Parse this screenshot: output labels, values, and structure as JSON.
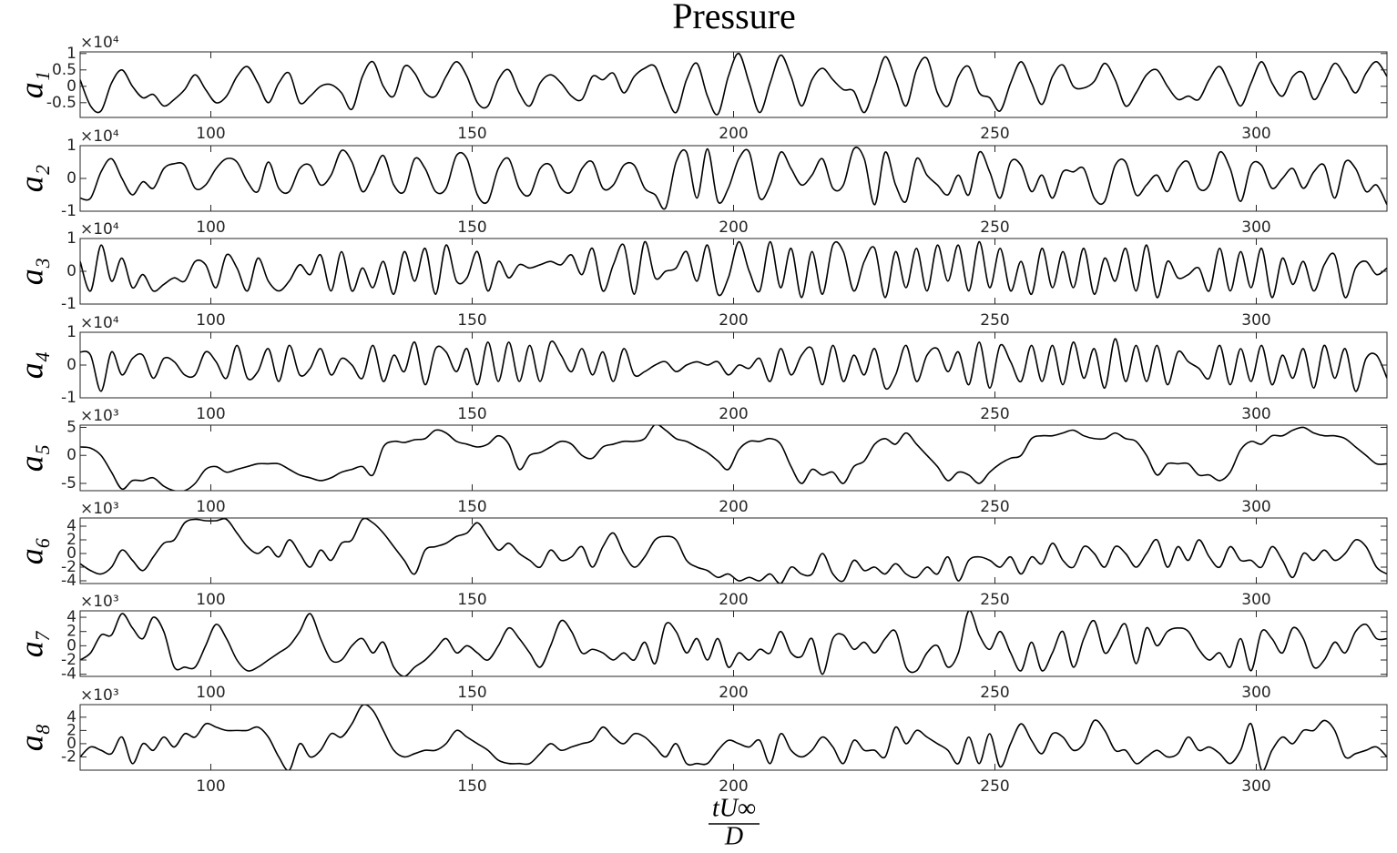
{
  "chart_data": {
    "type": "line",
    "title": "Pressure",
    "xlabel_numerator": "tU∞",
    "xlabel_denominator": "D",
    "xlim": [
      75,
      325
    ],
    "xticks": [
      100,
      150,
      200,
      250,
      300
    ],
    "color": "#000000",
    "x": [
      75,
      77,
      79,
      81,
      83,
      85,
      87,
      89,
      91,
      93,
      95,
      97,
      99,
      101,
      103,
      105,
      107,
      109,
      111,
      113,
      115,
      117,
      119,
      121,
      123,
      125,
      127,
      129,
      131,
      133,
      135,
      137,
      139,
      141,
      143,
      145,
      147,
      149,
      151,
      153,
      155,
      157,
      159,
      161,
      163,
      165,
      167,
      169,
      171,
      173,
      175,
      177,
      179,
      181,
      183,
      185,
      187,
      189,
      191,
      193,
      195,
      197,
      199,
      201,
      203,
      205,
      207,
      209,
      211,
      213,
      215,
      217,
      219,
      221,
      223,
      225,
      227,
      229,
      231,
      233,
      235,
      237,
      239,
      241,
      243,
      245,
      247,
      249,
      251,
      253,
      255,
      257,
      259,
      261,
      263,
      265,
      267,
      269,
      271,
      273,
      275,
      277,
      279,
      281,
      283,
      285,
      287,
      289,
      291,
      293,
      295,
      297,
      299,
      301,
      303,
      305,
      307,
      309,
      311,
      313,
      315,
      317,
      319,
      321,
      323,
      325
    ],
    "panels": [
      {
        "ylabel": "a₁",
        "y_multiplier": "×10⁴",
        "ylim": [
          -0.95,
          1.05
        ],
        "yticks": [
          -0.5,
          0,
          0.5,
          1
        ],
        "values": [
          0.2,
          -0.6,
          -0.75,
          0.1,
          0.5,
          0,
          -0.35,
          -0.25,
          -0.6,
          -0.4,
          -0.1,
          0.35,
          -0.1,
          -0.5,
          -0.3,
          0.3,
          0.6,
          0.1,
          -0.5,
          0.1,
          0.4,
          -0.5,
          -0.3,
          0,
          0.05,
          -0.2,
          -0.7,
          0.3,
          0.75,
          0,
          -0.3,
          0.6,
          0.4,
          -0.2,
          -0.3,
          0.3,
          0.75,
          0.3,
          -0.5,
          -0.6,
          0.2,
          0.5,
          -0.2,
          -0.6,
          0.1,
          0.35,
          0.1,
          -0.3,
          -0.4,
          0.3,
          0.2,
          0.4,
          -0.2,
          0.3,
          0.55,
          0.6,
          -0.2,
          -0.8,
          0.2,
          0.7,
          -0.3,
          -0.85,
          0.3,
          1.0,
          0.1,
          -0.8,
          0.1,
          0.95,
          0.3,
          -0.6,
          0.2,
          0.55,
          0.2,
          -0.1,
          -0.15,
          -0.8,
          0,
          0.9,
          0.2,
          -0.6,
          0.5,
          0.85,
          -0.2,
          -0.6,
          0.3,
          0.6,
          -0.2,
          -0.35,
          -0.75,
          0.1,
          0.75,
          0.1,
          -0.55,
          0.3,
          0.65,
          0,
          -0.05,
          0.15,
          0.7,
          0.2,
          -0.6,
          -0.2,
          0.35,
          0.5,
          0,
          -0.4,
          -0.3,
          -0.4,
          0.2,
          0.6,
          0,
          -0.6,
          0.1,
          0.75,
          0.1,
          -0.3,
          0.3,
          0.4,
          -0.4,
          0.1,
          0.7,
          0.3,
          -0.2,
          0.4,
          0.75,
          0.3
        ]
      },
      {
        "ylabel": "a₂",
        "y_multiplier": "×10⁴",
        "ylim": [
          -1,
          1
        ],
        "yticks": [
          -1,
          0,
          1
        ],
        "values": [
          -0.6,
          -0.6,
          0.2,
          0.6,
          0,
          -0.5,
          -0.1,
          -0.3,
          0.3,
          0.45,
          0.4,
          -0.3,
          -0.2,
          0.3,
          0.6,
          0.5,
          -0.1,
          -0.4,
          0.5,
          -0.3,
          -0.4,
          0.3,
          0.4,
          -0.2,
          0.1,
          0.85,
          0.5,
          -0.4,
          0.1,
          0.7,
          -0.2,
          -0.4,
          0.6,
          0.3,
          -0.4,
          -0.3,
          0.7,
          0.6,
          -0.5,
          -0.7,
          0.3,
          0.6,
          -0.3,
          -0.5,
          0.3,
          0.4,
          -0.3,
          -0.4,
          0.3,
          0.5,
          -0.3,
          -0.2,
          0.4,
          0.4,
          -0.3,
          -0.5,
          -0.9,
          0.5,
          0.8,
          -0.6,
          0.9,
          -0.7,
          -0.3,
          0.6,
          0.8,
          -0.6,
          -0.2,
          0.8,
          0.3,
          -0.2,
          0.1,
          0.6,
          -0.3,
          -0.2,
          0.9,
          0.6,
          -0.8,
          0.8,
          -0.2,
          -0.7,
          0.6,
          0.1,
          -0.2,
          -0.5,
          0.1,
          -0.5,
          0.8,
          0.2,
          -0.6,
          0.5,
          0.4,
          -0.4,
          0.1,
          -0.6,
          0.2,
          0.2,
          0.3,
          -0.6,
          -0.7,
          0.4,
          0.5,
          -0.5,
          -0.2,
          0.1,
          -0.4,
          0.3,
          0.5,
          -0.3,
          -0.2,
          0.8,
          0.3,
          -0.7,
          0.4,
          0.4,
          -0.3,
          0,
          0.3,
          -0.3,
          0.2,
          0.4,
          -0.6,
          0.5,
          0.3,
          -0.4,
          -0.2,
          -0.8
        ]
      },
      {
        "ylabel": "a₃",
        "y_multiplier": "×10⁴",
        "ylim": [
          -1,
          1
        ],
        "yticks": [
          -1,
          0,
          1
        ],
        "values": [
          0.3,
          -0.6,
          0.8,
          -0.3,
          0.4,
          -0.5,
          -0.1,
          -0.6,
          -0.4,
          -0.2,
          -0.3,
          0.3,
          0.2,
          -0.5,
          0.5,
          0.1,
          -0.6,
          0.4,
          -0.3,
          -0.6,
          -0.3,
          0.2,
          -0.1,
          0.5,
          -0.6,
          0.6,
          -0.6,
          0.1,
          -0.5,
          0.3,
          -0.7,
          0.6,
          -0.3,
          0.7,
          -0.7,
          0.8,
          -0.3,
          -0.2,
          0.6,
          -0.6,
          0.3,
          -0.2,
          0.2,
          0.1,
          0.2,
          0.3,
          0.2,
          0.5,
          -0.1,
          0.7,
          -0.6,
          0.2,
          0.8,
          -0.7,
          0.9,
          -0.2,
          0,
          0.1,
          0.6,
          -0.3,
          0.8,
          -0.7,
          -0.2,
          0.9,
          0,
          -0.6,
          0.9,
          -0.5,
          0.7,
          -0.8,
          0.6,
          -0.7,
          0.8,
          0.6,
          -0.6,
          0.3,
          0.7,
          -0.8,
          0.6,
          -0.5,
          0.7,
          -0.6,
          0.8,
          -0.3,
          0.8,
          -0.6,
          0.9,
          -0.5,
          0.7,
          -0.6,
          0.3,
          -0.7,
          0.7,
          -0.5,
          0.6,
          -0.5,
          0.7,
          -0.7,
          0.4,
          -0.3,
          0.7,
          -0.6,
          0.8,
          -0.8,
          0.3,
          -0.2,
          -0.1,
          0.1,
          -0.6,
          0.7,
          -0.6,
          0.6,
          -0.5,
          0.7,
          -0.8,
          0.4,
          -0.4,
          0.3,
          -0.6,
          0.2,
          0.5,
          -0.8,
          0.1,
          0.3,
          -0.1,
          0.1
        ]
      },
      {
        "ylabel": "a₄",
        "y_multiplier": "×10⁴",
        "ylim": [
          -1,
          1
        ],
        "yticks": [
          -1,
          0,
          1
        ],
        "values": [
          0.4,
          0.3,
          -0.8,
          0.4,
          -0.3,
          0.2,
          0.3,
          -0.4,
          0.2,
          0.1,
          -0.3,
          -0.3,
          0.4,
          0.1,
          -0.4,
          0.6,
          -0.4,
          -0.2,
          0.5,
          -0.5,
          0.6,
          -0.3,
          -0.1,
          0.5,
          -0.3,
          0.2,
          0,
          -0.4,
          0.6,
          -0.5,
          0.3,
          -0.2,
          0.7,
          -0.6,
          0.5,
          0.4,
          -0.2,
          0.5,
          -0.6,
          0.7,
          -0.5,
          0.7,
          -0.5,
          0.6,
          -0.5,
          0.7,
          0.3,
          -0.2,
          0.5,
          -0.3,
          0.4,
          -0.5,
          0.5,
          -0.3,
          -0.2,
          0,
          0.1,
          -0.2,
          0,
          0.1,
          0,
          0.1,
          -0.3,
          0,
          -0.1,
          0.2,
          -0.5,
          0.5,
          -0.3,
          0.3,
          0.5,
          -0.6,
          0.6,
          -0.5,
          0.3,
          -0.3,
          0.5,
          -0.7,
          -0.3,
          0.6,
          -0.5,
          0.3,
          0.5,
          -0.2,
          0.4,
          -0.6,
          0.7,
          -0.7,
          0.6,
          0.1,
          -0.5,
          0.6,
          -0.5,
          0.6,
          -0.6,
          0.7,
          -0.4,
          0.5,
          -0.7,
          0.8,
          -0.5,
          0.6,
          -0.5,
          0.6,
          -0.6,
          0.4,
          0.1,
          -0.1,
          -0.4,
          0.6,
          -0.6,
          0.5,
          -0.5,
          0.6,
          -0.6,
          0.3,
          -0.4,
          0.5,
          -0.7,
          0.6,
          -0.4,
          0.5,
          -0.8,
          0.2,
          0.3,
          -0.4
        ]
      },
      {
        "ylabel": "a₅",
        "y_multiplier": "×10³",
        "ylim": [
          -6.3,
          5.4
        ],
        "yticks": [
          -5,
          0,
          5
        ],
        "values": [
          1.5,
          1.3,
          0,
          -3,
          -6,
          -4.5,
          -4.5,
          -4,
          -5.5,
          -6.3,
          -6.3,
          -5,
          -2.5,
          -2,
          -3,
          -2.5,
          -2,
          -1.5,
          -1.5,
          -1.5,
          -2.5,
          -3.5,
          -4,
          -4.5,
          -4,
          -3,
          -2.5,
          -2,
          -3.5,
          1.5,
          2.5,
          2.3,
          2.8,
          3,
          4.5,
          4,
          2.5,
          2,
          1.5,
          2,
          3.5,
          2,
          -2.5,
          0,
          0.5,
          1.5,
          2.5,
          2,
          0,
          -0.5,
          1.5,
          2,
          2.5,
          2.5,
          3,
          5.5,
          4.5,
          3,
          2.5,
          1.5,
          0.5,
          -1,
          -2.5,
          1,
          2.5,
          2.5,
          3,
          2,
          -2,
          -5,
          -2.5,
          -3.5,
          -3,
          -5,
          -2,
          -1,
          2,
          3,
          2,
          4,
          2,
          0,
          -2,
          -4.5,
          -3,
          -3.5,
          -5,
          -3,
          -1.5,
          -0.5,
          0,
          3,
          3.5,
          3.5,
          4,
          4.5,
          3.5,
          3,
          3,
          4,
          3,
          2.5,
          0,
          -3.5,
          -1.5,
          -1.5,
          -1.5,
          -3.5,
          -3.5,
          -4.5,
          -3,
          1,
          2.5,
          2,
          3.5,
          3.5,
          4.5,
          5,
          4,
          3.5,
          3.5,
          3,
          1.5,
          0,
          -1.5,
          -1.5
        ]
      },
      {
        "ylabel": "a₆",
        "y_multiplier": "×10³",
        "ylim": [
          -4.4,
          5.2
        ],
        "yticks": [
          -4,
          -2,
          0,
          2,
          4
        ],
        "values": [
          -1.5,
          -2.5,
          -3,
          -2,
          0.5,
          -1,
          -2.5,
          -0.5,
          1.5,
          2,
          4.5,
          5,
          4.8,
          4.8,
          5,
          3,
          1,
          0,
          1,
          -0.5,
          2,
          0,
          -2,
          0.5,
          -1,
          1.5,
          2,
          5,
          4.5,
          3,
          1,
          -1,
          -3,
          0.5,
          1,
          1.5,
          2.5,
          3,
          4.5,
          2.5,
          0.5,
          1.5,
          0,
          -1,
          -2,
          0.5,
          -1,
          -0.5,
          1,
          -2,
          1,
          3,
          0,
          -2,
          -0.5,
          2,
          2.5,
          2,
          -1,
          -2,
          -2.5,
          -3.5,
          -3,
          -4,
          -3.5,
          -4,
          -3,
          -4.4,
          -2,
          -3,
          -3,
          0,
          -3,
          -4,
          -1,
          -2.5,
          -2,
          -3,
          -1.5,
          -3,
          -3.5,
          -2,
          -3,
          -0.5,
          -4,
          -1,
          -0.5,
          -1,
          -2,
          -0.5,
          -3,
          -0.5,
          -1.5,
          1.5,
          -1,
          -2,
          1,
          0,
          -2,
          1,
          0,
          -2,
          0,
          2,
          -2,
          1,
          -1,
          2,
          -0.5,
          -2,
          1,
          -1,
          -1,
          -2,
          1,
          -1,
          -3.5,
          0,
          -1,
          0.5,
          -1,
          0,
          2,
          1,
          -2,
          -3
        ]
      },
      {
        "ylabel": "a₇",
        "y_multiplier": "×10³",
        "ylim": [
          -4.3,
          4.9
        ],
        "yticks": [
          -4,
          -2,
          0,
          2,
          4
        ],
        "values": [
          -2,
          -1,
          1.5,
          1.5,
          4.5,
          2.5,
          1,
          4,
          2,
          -3,
          -3,
          -3,
          0,
          3,
          1,
          -2,
          -3.5,
          -3,
          -2,
          -1,
          0,
          2,
          4.5,
          1,
          -2,
          -2,
          0,
          1,
          -1,
          0.5,
          -3,
          -4.3,
          -3,
          -2,
          -0.5,
          1,
          -1,
          0,
          -1,
          -2,
          0,
          2.5,
          1,
          -1,
          -3,
          0,
          3.5,
          2,
          -1,
          -0.5,
          -1,
          -2,
          -1,
          -2,
          0.5,
          -2.5,
          3,
          2,
          -1,
          1,
          -2,
          1,
          -3,
          -1,
          -2,
          -0.5,
          -1,
          2,
          -1,
          -1.5,
          1,
          -4,
          1,
          1.5,
          -0.5,
          0.5,
          -1,
          1,
          2,
          -3,
          -3.5,
          -1,
          0,
          -3,
          -1,
          4.9,
          1.5,
          -0.5,
          2,
          -1,
          -3.5,
          0.5,
          -3.5,
          -1,
          2,
          -3,
          1,
          3.5,
          -1,
          1,
          3,
          -2.5,
          2.5,
          0,
          2,
          2.5,
          2,
          -0.5,
          -2,
          -1,
          -3,
          1,
          -3.5,
          2,
          1,
          -1,
          2.5,
          1,
          -3,
          -2,
          0.5,
          -1,
          2,
          3,
          1,
          1
        ]
      },
      {
        "ylabel": "a₈",
        "y_multiplier": "×10³",
        "ylim": [
          -4,
          5.9
        ],
        "yticks": [
          -2,
          0,
          2,
          4
        ],
        "values": [
          -2,
          -0.5,
          -1,
          -1.5,
          1,
          -3,
          0,
          -1,
          1,
          -0.5,
          1.5,
          1,
          3,
          2.5,
          2,
          2,
          2,
          2.5,
          1,
          -2,
          -4,
          0,
          -2,
          -1,
          1.5,
          1,
          3,
          5.8,
          5,
          2,
          -1,
          -2,
          -1.5,
          -1,
          -1,
          0,
          2,
          1,
          0,
          -1,
          -2.5,
          -3,
          -3,
          -3,
          -1.5,
          0,
          -1,
          -0.5,
          0,
          0.5,
          2.5,
          1,
          0,
          1.5,
          1,
          -0.5,
          -2,
          0,
          -3,
          -3,
          -3,
          -1,
          0.5,
          0,
          -0.5,
          0.5,
          -3,
          1.5,
          -1,
          -2,
          -1,
          1,
          -0.5,
          -3,
          0.5,
          -1,
          -1,
          -2,
          2.5,
          0,
          2,
          1,
          0,
          -1,
          -3,
          1,
          -3,
          1.5,
          -3.5,
          0,
          3,
          0.5,
          -1.5,
          1.5,
          1,
          -1,
          0,
          3.5,
          2,
          -1,
          -1,
          -3,
          -2,
          -1,
          -2,
          -1.5,
          1,
          -1,
          -0.5,
          -1.5,
          -3,
          -1,
          3,
          -4,
          -1,
          1,
          0,
          2,
          2,
          3.5,
          2,
          -2,
          -1.5,
          -1,
          -0.5,
          -2
        ]
      }
    ]
  }
}
